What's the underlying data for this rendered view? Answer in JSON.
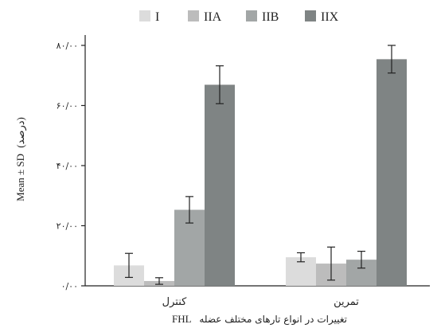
{
  "chart_data": {
    "type": "bar",
    "categories": [
      "کنترل",
      "تمرین"
    ],
    "series": [
      {
        "name": "I",
        "color": "#dcdcdc",
        "values": [
          6.8,
          9.5
        ],
        "errors": [
          4.0,
          1.5
        ]
      },
      {
        "name": "IIA",
        "color": "#bcbcbc",
        "values": [
          1.6,
          7.4
        ],
        "errors": [
          1.1,
          5.5
        ]
      },
      {
        "name": "IIB",
        "color": "#a2a6a6",
        "values": [
          25.3,
          8.7
        ],
        "errors": [
          4.4,
          2.8
        ]
      },
      {
        "name": "IIX",
        "color": "#7f8484",
        "values": [
          66.9,
          75.4
        ],
        "errors": [
          6.3,
          4.6
        ]
      }
    ],
    "y_ticks": [
      "۰/۰۰",
      "۲۰/۰۰",
      "۴۰/۰۰",
      "۶۰/۰۰",
      "۸۰/۰۰"
    ],
    "ylim": [
      0,
      80
    ],
    "ylabel": "Mean ± SD",
    "ylabel_unit": "(درصد)",
    "xlabel": "تغییرات در انواع تارهای مختلف عضله",
    "xlabel_suffix": "FHL",
    "legend": {
      "position": "top-center",
      "items": [
        "I",
        "IIA",
        "IIB",
        "IIX"
      ]
    },
    "grid": false
  }
}
